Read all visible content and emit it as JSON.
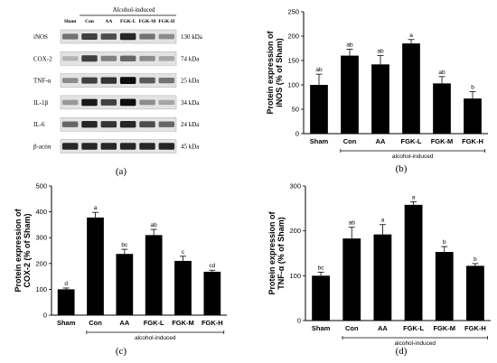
{
  "panels": [
    {
      "id": "a",
      "label": "(a)"
    },
    {
      "id": "b",
      "label": "(b)"
    },
    {
      "id": "c",
      "label": "(c)"
    },
    {
      "id": "d",
      "label": "(d)"
    }
  ],
  "western_blot": {
    "group_label": "Alcohol-induced",
    "lanes": [
      "Sham",
      "Con",
      "AA",
      "FGK-L",
      "FGK-M",
      "FGK-H"
    ],
    "rows": [
      {
        "protein": "iNOS",
        "kda": "130 kDa",
        "intensity": [
          0.55,
          0.75,
          0.7,
          0.85,
          0.55,
          0.45
        ]
      },
      {
        "protein": "COX-2",
        "kda": "74 kDa",
        "intensity": [
          0.3,
          0.75,
          0.5,
          0.6,
          0.45,
          0.35
        ]
      },
      {
        "protein": "TNF-α",
        "kda": "25 kDa",
        "intensity": [
          0.45,
          0.75,
          0.8,
          0.95,
          0.65,
          0.55
        ]
      },
      {
        "protein": "IL-1β",
        "kda": "34 kDa",
        "intensity": [
          0.4,
          0.9,
          0.75,
          0.95,
          0.45,
          0.35
        ]
      },
      {
        "protein": "IL-6",
        "kda": "24 kDa",
        "intensity": [
          0.6,
          0.85,
          0.8,
          0.85,
          0.7,
          0.6
        ]
      },
      {
        "protein": "β-actin",
        "kda": "45 kDa",
        "intensity": [
          0.85,
          0.85,
          0.85,
          0.85,
          0.85,
          0.85
        ]
      }
    ]
  },
  "chart_data": [
    {
      "panel": "b",
      "type": "bar",
      "categories": [
        "Sham",
        "Con",
        "AA",
        "FGK-L",
        "FGK-M",
        "FGK-H"
      ],
      "values": [
        100,
        160,
        142,
        185,
        103,
        72
      ],
      "errors": [
        22,
        13,
        18,
        8,
        14,
        14
      ],
      "letters": [
        "ab",
        "ab",
        "ab",
        "a",
        "ab",
        "b"
      ],
      "ylabel": "Protein expression of\niNOS (% of Sham)",
      "group_label": "alcohol-induced",
      "ylim": [
        0,
        250
      ],
      "yticks": [
        0,
        50,
        100,
        150,
        200,
        250
      ]
    },
    {
      "panel": "c",
      "type": "bar",
      "categories": [
        "Sham",
        "Con",
        "AA",
        "FGK-L",
        "FGK-M",
        "FGK-H"
      ],
      "values": [
        100,
        378,
        237,
        310,
        210,
        168
      ],
      "errors": [
        5,
        20,
        18,
        22,
        18,
        6
      ],
      "letters": [
        "d",
        "a",
        "bc",
        "ab",
        "c",
        "cd"
      ],
      "ylabel": "Protein expression of\nCOX-2 (% of Sham)",
      "group_label": "alcohol-induced",
      "ylim": [
        0,
        500
      ],
      "yticks": [
        0,
        100,
        200,
        300,
        400,
        500
      ]
    },
    {
      "panel": "d",
      "type": "bar",
      "categories": [
        "Sham",
        "Con",
        "AA",
        "FGK-L",
        "FGK-M",
        "FGK-H"
      ],
      "values": [
        100,
        183,
        192,
        258,
        153,
        122
      ],
      "errors": [
        8,
        25,
        22,
        7,
        12,
        5
      ],
      "letters": [
        "bc",
        "ab",
        "a",
        "a",
        "b",
        "b"
      ],
      "ylabel": "Protein expression of\nTNF-α (% of Sham)",
      "group_label": "alcohol-induced",
      "ylim": [
        0,
        300
      ],
      "yticks": [
        0,
        100,
        200,
        300
      ]
    }
  ]
}
